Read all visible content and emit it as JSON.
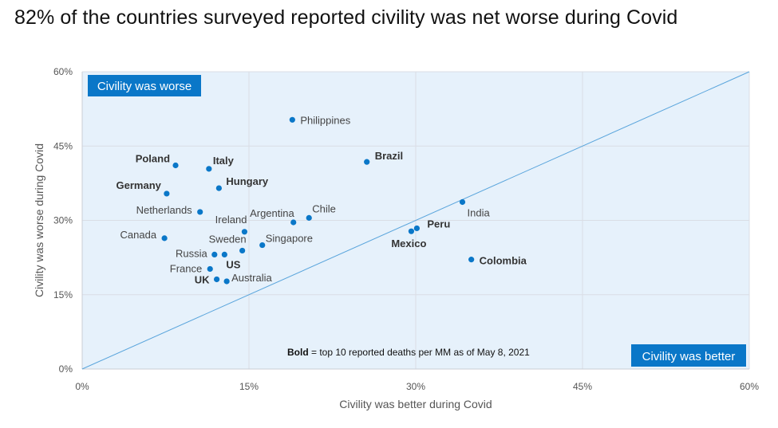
{
  "title": "82% of the countries surveyed reported civility was net worse during Covid",
  "chart_data": {
    "type": "scatter",
    "xlabel": "Civility was better during Covid",
    "ylabel": "Civility was worse during Covid",
    "xlim": [
      0,
      60
    ],
    "ylim": [
      0,
      60
    ],
    "x_ticks": [
      "0%",
      "15%",
      "30%",
      "45%",
      "60%"
    ],
    "y_ticks": [
      "0%",
      "15%",
      "30%",
      "45%",
      "60%"
    ],
    "tick_values": [
      0,
      15,
      30,
      45,
      60
    ],
    "grid": true,
    "reference_line": "y = x",
    "region_labels": {
      "top_left": "Civility was worse",
      "bottom_right": "Civility was better"
    },
    "note": {
      "bold": "Bold",
      "text": " = top 10 reported deaths per MM as of May 8, 2021"
    },
    "colors": {
      "point": "#0a77c8",
      "plot_bg": "#e6f1fb",
      "box": "#0a77c8",
      "diagonal": "#5aa5dc",
      "grid": "#d9dde5"
    },
    "points": [
      {
        "label": "Philippines",
        "x": 18.9,
        "y": 50.3,
        "bold": false
      },
      {
        "label": "Brazil",
        "x": 25.6,
        "y": 41.8,
        "bold": true
      },
      {
        "label": "Poland",
        "x": 8.4,
        "y": 41.1,
        "bold": true
      },
      {
        "label": "Italy",
        "x": 11.4,
        "y": 40.4,
        "bold": true
      },
      {
        "label": "Hungary",
        "x": 12.3,
        "y": 36.5,
        "bold": true
      },
      {
        "label": "Germany",
        "x": 7.6,
        "y": 35.4,
        "bold": true
      },
      {
        "label": "India",
        "x": 34.2,
        "y": 33.7,
        "bold": false
      },
      {
        "label": "Netherlands",
        "x": 10.6,
        "y": 31.7,
        "bold": false
      },
      {
        "label": "Chile",
        "x": 20.4,
        "y": 30.5,
        "bold": false
      },
      {
        "label": "Argentina",
        "x": 19.0,
        "y": 29.6,
        "bold": false
      },
      {
        "label": "Peru",
        "x": 30.1,
        "y": 28.4,
        "bold": true
      },
      {
        "label": "Ireland",
        "x": 14.6,
        "y": 27.7,
        "bold": false
      },
      {
        "label": "Mexico",
        "x": 29.6,
        "y": 27.8,
        "bold": true
      },
      {
        "label": "Canada",
        "x": 7.4,
        "y": 26.4,
        "bold": false
      },
      {
        "label": "Singapore",
        "x": 16.2,
        "y": 25.0,
        "bold": false
      },
      {
        "label": "Sweden",
        "x": 14.4,
        "y": 23.9,
        "bold": false
      },
      {
        "label": "Russia",
        "x": 11.9,
        "y": 23.1,
        "bold": false
      },
      {
        "label": "US",
        "x": 12.8,
        "y": 23.1,
        "bold": true
      },
      {
        "label": "Colombia",
        "x": 35.0,
        "y": 22.1,
        "bold": true
      },
      {
        "label": "France",
        "x": 11.5,
        "y": 20.2,
        "bold": false
      },
      {
        "label": "UK",
        "x": 12.1,
        "y": 18.1,
        "bold": true
      },
      {
        "label": "Australia",
        "x": 13.0,
        "y": 17.7,
        "bold": false
      }
    ]
  }
}
